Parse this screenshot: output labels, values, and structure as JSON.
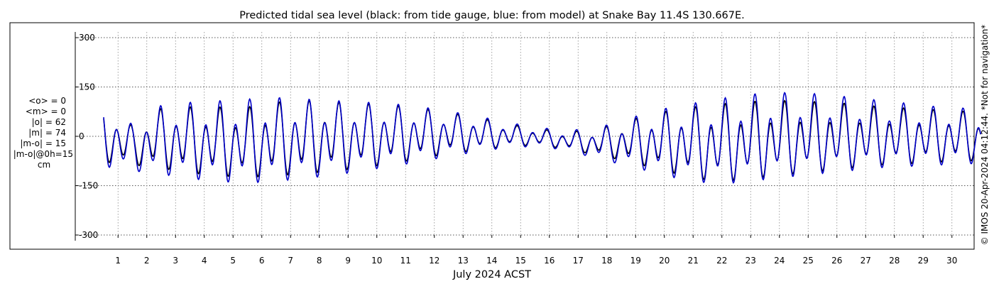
{
  "chart_data": {
    "type": "line",
    "title": "Predicted tidal sea level (black: from tide gauge, blue: from model) at Snake Bay 11.4S 130.667E.",
    "xlabel": "July 2024 ACST",
    "ylabel": "",
    "x_ticks": [
      "1",
      "2",
      "3",
      "4",
      "5",
      "6",
      "7",
      "8",
      "9",
      "10",
      "11",
      "12",
      "13",
      "14",
      "15",
      "16",
      "17",
      "18",
      "19",
      "20",
      "21",
      "22",
      "23",
      "24",
      "25",
      "26",
      "27",
      "28",
      "29",
      "30"
    ],
    "x_range_days": [
      0,
      31
    ],
    "y_ticks": [
      300,
      150,
      0,
      -150,
      -300
    ],
    "y_tick_labels": [
      "300",
      "150",
      "0",
      "-150",
      "-300"
    ],
    "ylim": [
      -300,
      300
    ],
    "grid": true,
    "stats": [
      "<o> = 0",
      "<m> = 0",
      "|o| = 62",
      "|m| = 74",
      "|m-o| = 15",
      "|m-o|@0h=15",
      "cm"
    ],
    "credit": "© IMOS 20-Apr-2024 04:12:44. *Not for navigation*",
    "series": [
      {
        "name": "from tide gauge",
        "color": "#000000",
        "peak_heights": [
          95,
          35,
          90,
          95,
          95,
          95,
          110,
          115,
          110,
          105,
          100,
          90,
          75,
          60,
          40,
          25,
          15,
          20,
          45,
          70,
          90,
          100,
          110,
          115,
          115,
          110,
          105,
          95,
          90,
          85,
          80,
          55,
          95
        ],
        "trough_depths": [
          -90,
          -95,
          -110,
          -125,
          -135,
          -140,
          -135,
          -130,
          -120,
          -110,
          -95,
          -80,
          -60,
          -50,
          -35,
          -30,
          -40,
          -60,
          -80,
          -105,
          -130,
          -150,
          -150,
          -140,
          -130,
          -120,
          -110,
          -100,
          -95,
          -90,
          -85
        ]
      },
      {
        "name": "from model",
        "color": "#0000c8",
        "peak_heights": [
          105,
          40,
          100,
          110,
          115,
          120,
          125,
          120,
          115,
          110,
          105,
          95,
          80,
          65,
          45,
          30,
          20,
          25,
          50,
          80,
          100,
          115,
          130,
          140,
          140,
          135,
          125,
          115,
          105,
          95,
          90,
          60,
          100
        ],
        "trough_depths": [
          -105,
          -115,
          -130,
          -145,
          -155,
          -160,
          -155,
          -145,
          -135,
          -120,
          -105,
          -90,
          -70,
          -55,
          -40,
          -35,
          -45,
          -70,
          -95,
          -120,
          -145,
          -160,
          -160,
          -150,
          -140,
          -130,
          -120,
          -110,
          -105,
          -100,
          -95
        ]
      }
    ]
  }
}
